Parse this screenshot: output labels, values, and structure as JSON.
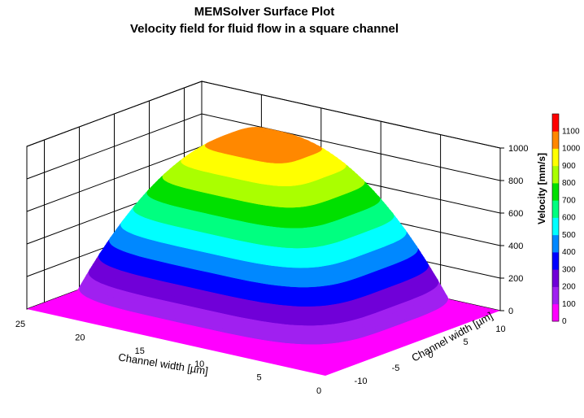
{
  "chart_data": {
    "type": "surface",
    "title": "MEMSolver Surface Plot",
    "subtitle": "Velocity field for fluid flow in a square channel",
    "x_axis": {
      "label": "Channel width [µm]",
      "ticks": [
        0,
        5,
        10,
        15,
        20,
        25
      ],
      "range": [
        0,
        25
      ]
    },
    "y_axis": {
      "label": "Channel width [µm]",
      "ticks": [
        -10,
        -5,
        0,
        5,
        10
      ],
      "range": [
        -12.5,
        12.5
      ]
    },
    "z_axis": {
      "ticks": [
        0,
        200,
        400,
        600,
        800,
        1000
      ],
      "range": [
        0,
        1100
      ]
    },
    "peak_velocity": 1100,
    "grid": true,
    "colorbar": {
      "label": "Velocity [mm/s]",
      "placement": "right",
      "levels": [
        {
          "value": 0,
          "color": "#ff00ff"
        },
        {
          "value": 100,
          "color": "#a020f0"
        },
        {
          "value": 200,
          "color": "#7000d8"
        },
        {
          "value": 300,
          "color": "#0000ff"
        },
        {
          "value": 400,
          "color": "#0088ff"
        },
        {
          "value": 500,
          "color": "#00ffff"
        },
        {
          "value": 600,
          "color": "#00ff80"
        },
        {
          "value": 700,
          "color": "#00e000"
        },
        {
          "value": 800,
          "color": "#aaff00"
        },
        {
          "value": 900,
          "color": "#ffff00"
        },
        {
          "value": 1000,
          "color": "#ff8800"
        },
        {
          "value": 1100,
          "color": "#ff0000"
        }
      ]
    }
  }
}
